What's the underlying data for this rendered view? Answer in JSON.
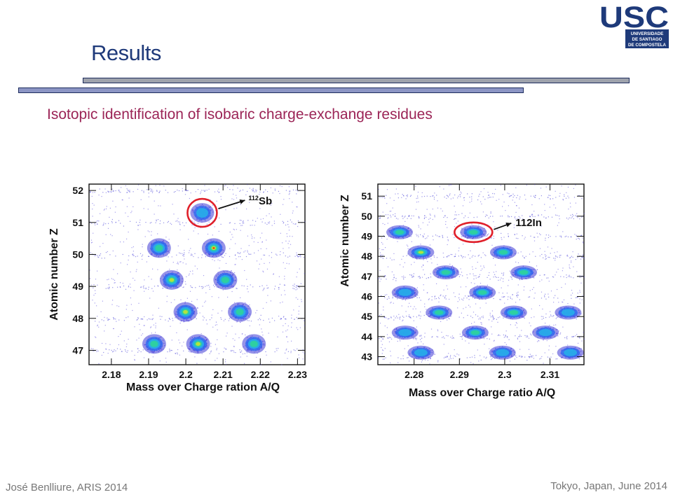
{
  "slide": {
    "title": "Results",
    "subtitle": "Isotopic identification of isobaric charge-exchange residues",
    "footer_left": "José Benlliure, ARIS 2014",
    "footer_right": "Tokyo, Japan, June 2014"
  },
  "logo": {
    "text": "USC",
    "lines": [
      "UNIVERSIDADE",
      "DE SANTIAGO",
      "DE COMPOSTELA"
    ],
    "color": "#1e3a7a"
  },
  "colors": {
    "title": "#1f3a7a",
    "subtitle": "#9b2456",
    "highlight": "#e0202a"
  },
  "chart_data": [
    {
      "type": "scatter",
      "title": "",
      "xlabel": "Mass over Charge ration A/Q",
      "ylabel": "Atomic number Z",
      "xlim": [
        2.174,
        2.232
      ],
      "ylim": [
        46.55,
        52.2
      ],
      "xticks": [
        "2.18",
        "2.19",
        "2.2",
        "2.21",
        "2.22",
        "2.23"
      ],
      "yticks": [
        "47",
        "48",
        "49",
        "50",
        "51",
        "52"
      ],
      "annotation": {
        "label": "112Sb",
        "sup": "112",
        "base": "Sb",
        "x": 2.2044,
        "y": 51.3
      },
      "clusters": [
        {
          "x": 2.2044,
          "y": 51.3,
          "intensity": 0.25
        },
        {
          "x": 2.1928,
          "y": 50.2,
          "intensity": 0.55
        },
        {
          "x": 2.2075,
          "y": 50.2,
          "intensity": 0.9
        },
        {
          "x": 2.1962,
          "y": 49.2,
          "intensity": 0.7
        },
        {
          "x": 2.2106,
          "y": 49.2,
          "intensity": 0.5
        },
        {
          "x": 2.1999,
          "y": 48.2,
          "intensity": 0.8
        },
        {
          "x": 2.2145,
          "y": 48.2,
          "intensity": 0.4
        },
        {
          "x": 2.2033,
          "y": 47.2,
          "intensity": 0.7
        },
        {
          "x": 2.1915,
          "y": 47.2,
          "intensity": 0.35
        },
        {
          "x": 2.2183,
          "y": 47.2,
          "intensity": 0.35
        }
      ]
    },
    {
      "type": "scatter",
      "title": "",
      "xlabel": "Mass over Charge ratio A/Q",
      "ylabel": "Atomic number Z",
      "xlim": [
        2.272,
        2.3175
      ],
      "ylim": [
        42.6,
        51.6
      ],
      "xticks": [
        "2.28",
        "2.29",
        "2.3",
        "2.31"
      ],
      "yticks": [
        "43",
        "44",
        "45",
        "46",
        "47",
        "48",
        "49",
        "50",
        "51"
      ],
      "annotation": {
        "label": "112In",
        "x": 2.2931,
        "y": 49.2
      },
      "clusters": [
        {
          "x": 2.2768,
          "y": 49.2,
          "intensity": 0.6
        },
        {
          "x": 2.2931,
          "y": 49.2,
          "intensity": 0.35
        },
        {
          "x": 2.2815,
          "y": 48.2,
          "intensity": 0.7
        },
        {
          "x": 2.2997,
          "y": 48.2,
          "intensity": 0.35
        },
        {
          "x": 2.287,
          "y": 47.2,
          "intensity": 0.6
        },
        {
          "x": 2.3042,
          "y": 47.2,
          "intensity": 0.35
        },
        {
          "x": 2.278,
          "y": 46.2,
          "intensity": 0.3
        },
        {
          "x": 2.2951,
          "y": 46.2,
          "intensity": 0.45
        },
        {
          "x": 2.2855,
          "y": 45.2,
          "intensity": 0.35
        },
        {
          "x": 2.302,
          "y": 45.2,
          "intensity": 0.35
        },
        {
          "x": 2.314,
          "y": 45.2,
          "intensity": 0.25
        },
        {
          "x": 2.278,
          "y": 44.2,
          "intensity": 0.25
        },
        {
          "x": 2.2935,
          "y": 44.2,
          "intensity": 0.35
        },
        {
          "x": 2.309,
          "y": 44.2,
          "intensity": 0.3
        },
        {
          "x": 2.2815,
          "y": 43.2,
          "intensity": 0.25
        },
        {
          "x": 2.2995,
          "y": 43.2,
          "intensity": 0.3
        },
        {
          "x": 2.3145,
          "y": 43.2,
          "intensity": 0.2
        }
      ]
    }
  ]
}
